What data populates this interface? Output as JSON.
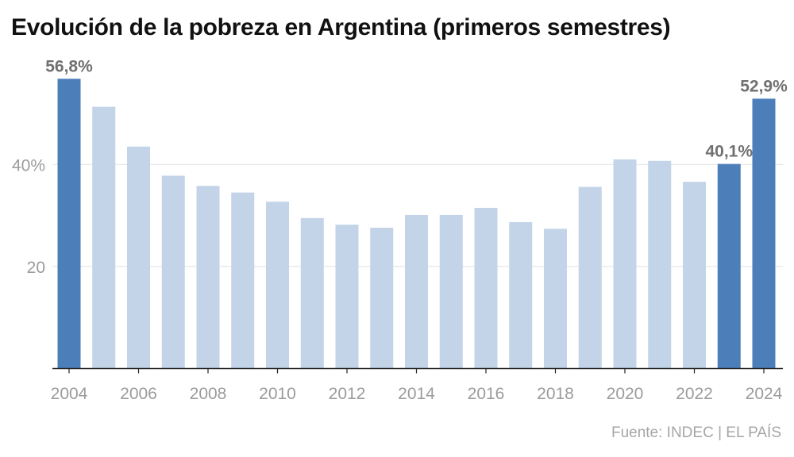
{
  "title": "Evolución de la pobreza en Argentina (primeros semestres)",
  "source": "Fuente: INDEC | EL PAÍS",
  "colors": {
    "highlight": "#4c7fba",
    "bar": "#c3d4e8",
    "grid": "#e1e1e1",
    "axis": "#222222"
  },
  "chart_data": {
    "type": "bar",
    "title": "Evolución de la pobreza en Argentina (primeros semestres)",
    "xlabel": "",
    "ylabel": "",
    "categories": [
      2004,
      2005,
      2006,
      2007,
      2008,
      2009,
      2010,
      2011,
      2012,
      2013,
      2014,
      2015,
      2016,
      2017,
      2018,
      2019,
      2020,
      2021,
      2022,
      2023,
      2024
    ],
    "values": [
      56.8,
      51.3,
      43.5,
      37.8,
      35.8,
      34.5,
      32.7,
      29.5,
      28.2,
      27.6,
      30.1,
      30.1,
      31.5,
      28.7,
      27.4,
      35.6,
      41.0,
      40.7,
      36.6,
      40.1,
      52.9
    ],
    "highlighted": [
      2004,
      2023,
      2024
    ],
    "data_labels": [
      {
        "category": 2004,
        "text": "56,8%"
      },
      {
        "category": 2023,
        "text": "40,1%"
      },
      {
        "category": 2024,
        "text": "52,9%"
      }
    ],
    "y_ticks": [
      {
        "value": 20,
        "label": "20"
      },
      {
        "value": 40,
        "label": "40%"
      }
    ],
    "x_tick_labels": [
      "2004",
      "2006",
      "2008",
      "2010",
      "2012",
      "2014",
      "2016",
      "2018",
      "2020",
      "2022",
      "2024"
    ],
    "ylim": [
      0,
      60
    ],
    "grid": true,
    "legend": "none"
  }
}
